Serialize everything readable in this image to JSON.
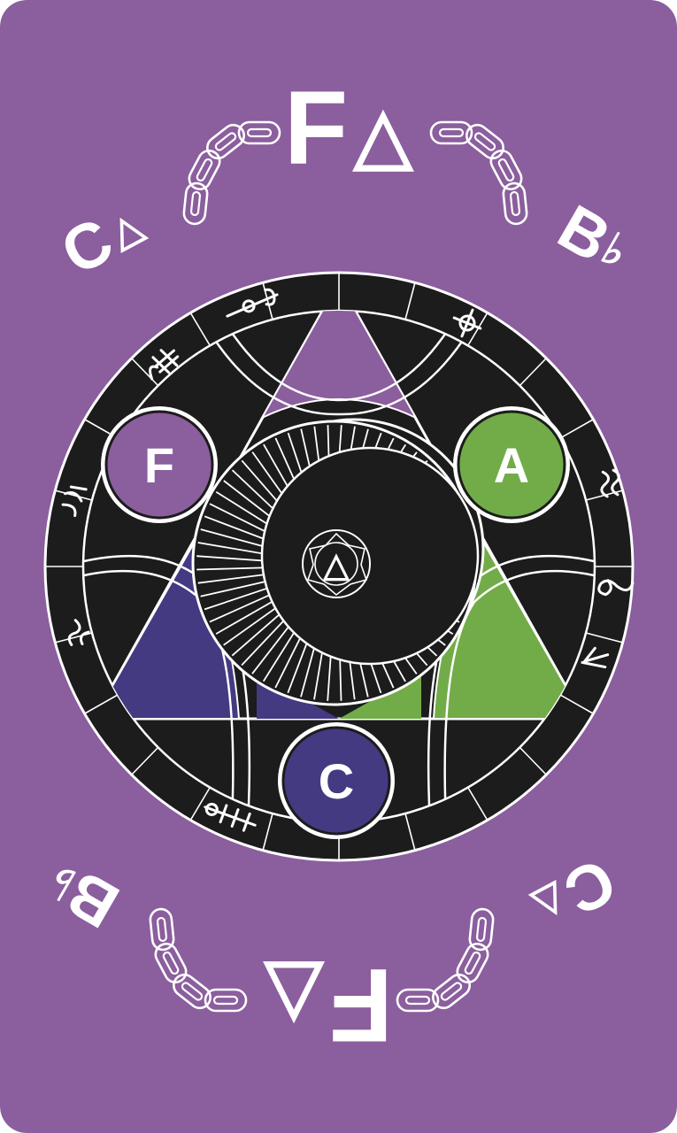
{
  "colors": {
    "card": "#8B5E9E",
    "ring": "#1C1C1C",
    "line": "#FFFFFF",
    "top_triangle": "#8B5E9E",
    "left_triangle": "#433A82",
    "right_triangle": "#72AC48",
    "note_f": "#8B5E9E",
    "note_a": "#72AC48",
    "note_c": "#433A82"
  },
  "top_chord": {
    "root": "F",
    "symbol": "△",
    "left_neighbor": {
      "root": "C",
      "symbol": "△"
    },
    "right_neighbor": {
      "root": "B",
      "accidental": "♭"
    }
  },
  "bottom_chord": {
    "root": "F",
    "symbol": "△",
    "left_neighbor": {
      "root": "B",
      "accidental": "♭"
    },
    "right_neighbor": {
      "root": "C",
      "symbol": "△"
    }
  },
  "chord_tones": [
    {
      "note": "F",
      "role": "root"
    },
    {
      "note": "A",
      "role": "third"
    },
    {
      "note": "C",
      "role": "fifth"
    }
  ],
  "center_symbol": "△",
  "decorations": {
    "chains": 4,
    "ring_glyphs": [
      "music-clef-icon",
      "note-icon",
      "treble-clef-icon",
      "rest-icon",
      "sharp-icon",
      "flat-icon"
    ]
  }
}
